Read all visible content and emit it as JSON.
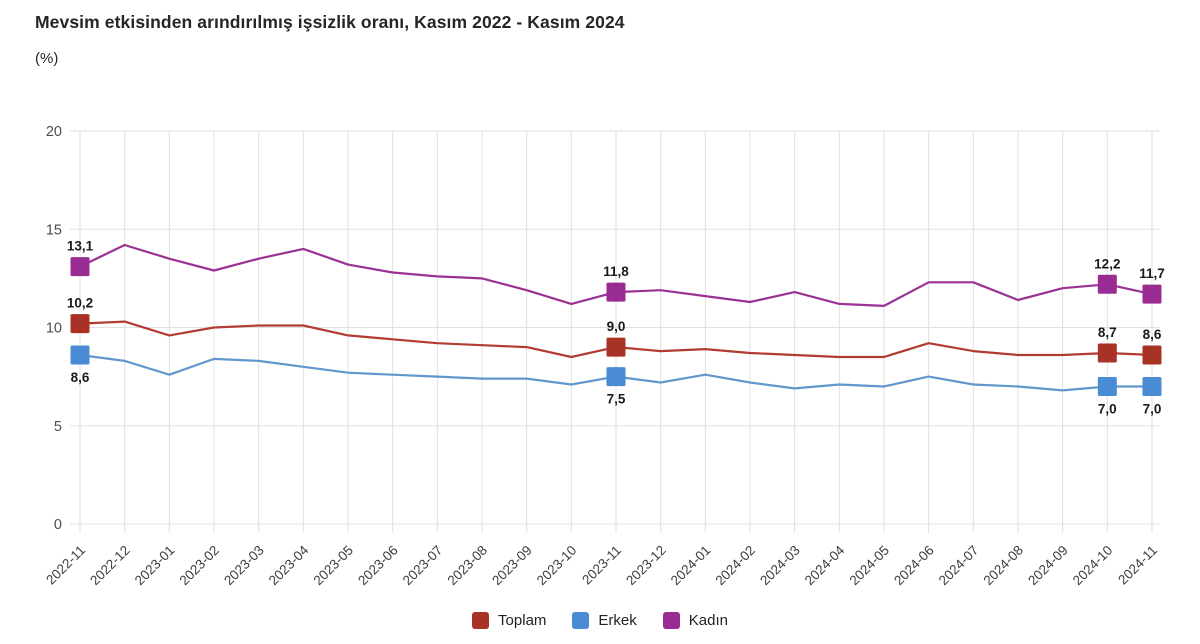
{
  "chart_data": {
    "type": "line",
    "title": "Mevsim etkisinden arındırılmış işsizlik oranı, Kasım 2022 - Kasım 2024",
    "subtitle": "(%)",
    "xlabel": "",
    "ylabel": "",
    "ylim": [
      0,
      20
    ],
    "yticks": [
      0,
      5,
      10,
      15,
      20
    ],
    "grid": true,
    "legend_position": "bottom",
    "categories": [
      "2022-11",
      "2022-12",
      "2023-01",
      "2023-02",
      "2023-03",
      "2023-04",
      "2023-05",
      "2023-06",
      "2023-07",
      "2023-08",
      "2023-09",
      "2023-10",
      "2023-11",
      "2023-12",
      "2024-01",
      "2024-02",
      "2024-03",
      "2024-04",
      "2024-05",
      "2024-06",
      "2024-07",
      "2024-08",
      "2024-09",
      "2024-10",
      "2024-11"
    ],
    "series": [
      {
        "name": "Toplam",
        "marker_color": "#A93226",
        "line_color": "#B23B32",
        "values": [
          10.2,
          10.3,
          9.6,
          10.0,
          10.1,
          10.1,
          9.6,
          9.4,
          9.2,
          9.1,
          9.0,
          8.5,
          9.0,
          8.8,
          8.9,
          8.7,
          8.6,
          8.5,
          8.5,
          9.2,
          8.8,
          8.6,
          8.6,
          8.7,
          8.6
        ],
        "annotations": [
          {
            "index": 0,
            "label": "10,2",
            "position": "above"
          },
          {
            "index": 12,
            "label": "9,0",
            "position": "above"
          },
          {
            "index": 23,
            "label": "8,7",
            "position": "above"
          },
          {
            "index": 24,
            "label": "8,6",
            "position": "above"
          }
        ]
      },
      {
        "name": "Erkek",
        "marker_color": "#4A8CD3",
        "line_color": "#6197CD",
        "values": [
          8.6,
          8.3,
          7.6,
          8.4,
          8.3,
          8.0,
          7.7,
          7.6,
          7.5,
          7.4,
          7.4,
          7.1,
          7.5,
          7.2,
          7.6,
          7.2,
          6.9,
          7.1,
          7.0,
          7.5,
          7.1,
          7.0,
          6.8,
          7.0,
          7.0
        ],
        "annotations": [
          {
            "index": 0,
            "label": "8,6",
            "position": "below"
          },
          {
            "index": 12,
            "label": "7,5",
            "position": "below"
          },
          {
            "index": 23,
            "label": "7,0",
            "position": "below"
          },
          {
            "index": 24,
            "label": "7,0",
            "position": "below"
          }
        ]
      },
      {
        "name": "Kadın",
        "marker_color": "#992C93",
        "line_color": "#9B3193",
        "values": [
          13.1,
          14.2,
          13.5,
          12.9,
          13.5,
          14.0,
          13.2,
          12.8,
          12.6,
          12.5,
          11.9,
          11.2,
          11.8,
          11.9,
          11.6,
          11.3,
          11.8,
          11.2,
          11.1,
          12.3,
          12.3,
          11.4,
          12.0,
          12.2,
          11.7
        ],
        "annotations": [
          {
            "index": 0,
            "label": "13,1",
            "position": "above"
          },
          {
            "index": 12,
            "label": "11,8",
            "position": "above"
          },
          {
            "index": 23,
            "label": "12,2",
            "position": "above"
          },
          {
            "index": 24,
            "label": "11,7",
            "position": "above"
          }
        ]
      }
    ],
    "colors": {
      "gridline": "#E0E0E0",
      "y_tick_label": "#4D4D4D",
      "x_tick_label": "#3D3D3D",
      "data_label": "#1A1A1A",
      "title": "#262626"
    }
  }
}
